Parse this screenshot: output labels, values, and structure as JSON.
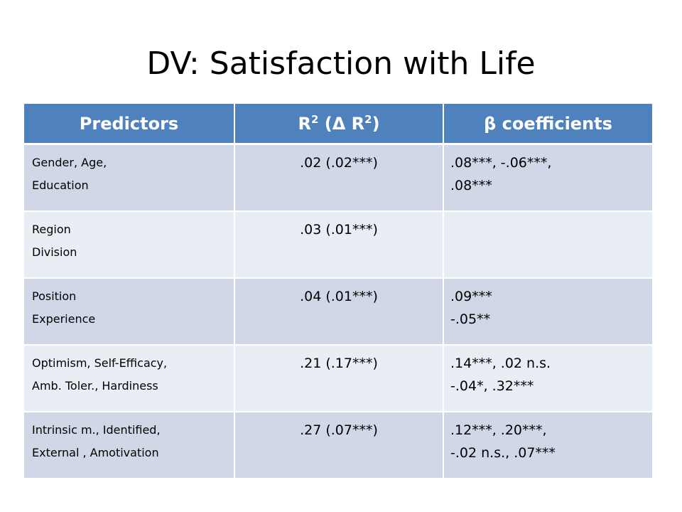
{
  "title": "DV: Satisfaction with Life",
  "table": {
    "headers": {
      "predictors": "Predictors",
      "r2_prefix": "R",
      "r2_sup1": "2",
      "r2_middle": " (Δ R",
      "r2_sup2": "2",
      "r2_suffix": ")",
      "beta": "β coefficients"
    },
    "rows": [
      {
        "predictors": [
          "Gender, Age,",
          "Education"
        ],
        "r2": ".02 (.02***)",
        "beta": [
          ".08***, -.06***,",
          ".08***"
        ]
      },
      {
        "predictors": [
          "Region",
          "Division"
        ],
        "r2": ".03 (.01***)",
        "beta": [
          "",
          ""
        ]
      },
      {
        "predictors": [
          "Position",
          "Experience"
        ],
        "r2": ".04 (.01***)",
        "beta": [
          ".09***",
          "-.05**"
        ]
      },
      {
        "predictors": [
          "Optimism, Self-Efficacy,",
          "Amb. Toler., Hardiness"
        ],
        "r2": ".21 (.17***)",
        "beta": [
          ".14***, .02 n.s.",
          "-.04*, .32***"
        ]
      },
      {
        "predictors": [
          "Intrinsic m., Identified,",
          "External , Amotivation"
        ],
        "r2": ".27 (.07***)",
        "beta": [
          ".12***, .20***,",
          "-.02 n.s., .07***"
        ]
      }
    ]
  },
  "colors": {
    "header_bg": "#4f81bd",
    "row_odd_bg": "#d0d8e8",
    "row_even_bg": "#e9edf4"
  }
}
